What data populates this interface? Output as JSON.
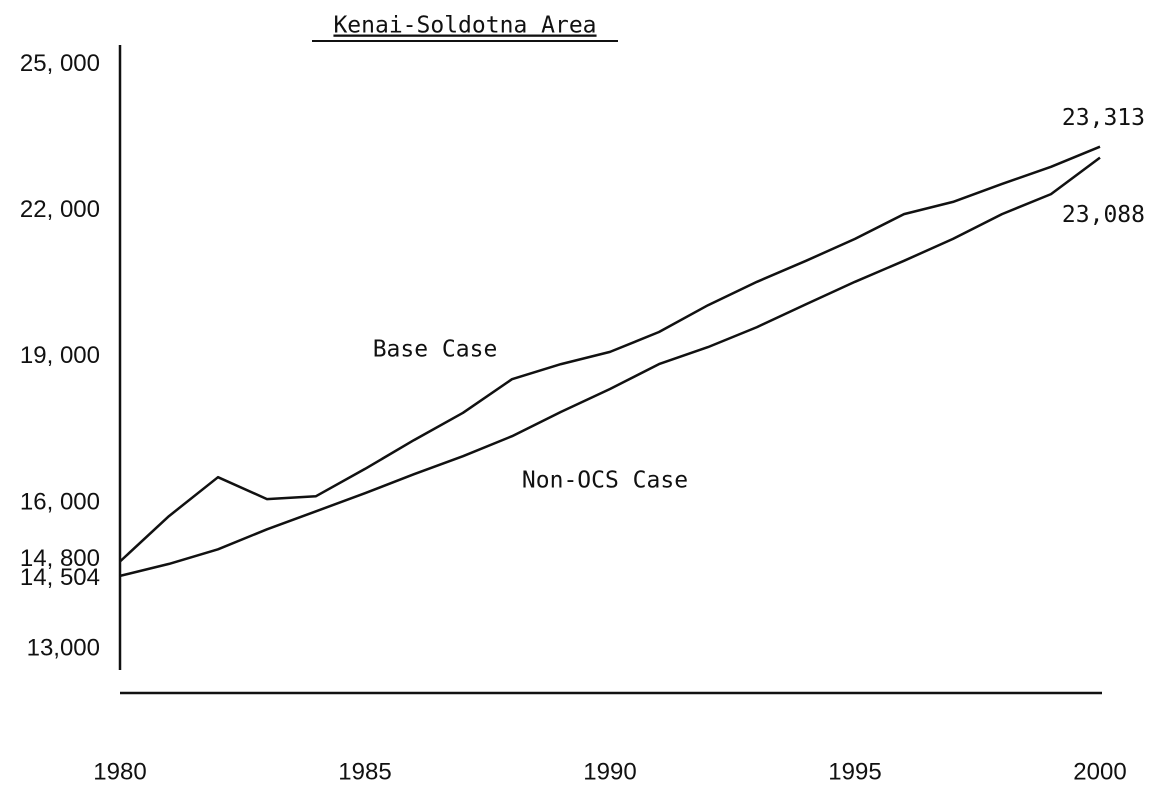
{
  "chart_data": {
    "type": "line",
    "title": "Kenai-Soldotna Area",
    "x": [
      1980,
      1981,
      1982,
      1983,
      1984,
      1985,
      1986,
      1987,
      1988,
      1989,
      1990,
      1991,
      1992,
      1993,
      1994,
      1995,
      1996,
      1997,
      1998,
      1999,
      2000
    ],
    "series": [
      {
        "name": "Base Case",
        "color": "#111111",
        "values": [
          14800,
          15730,
          16530,
          16080,
          16140,
          16700,
          17290,
          17850,
          18540,
          18850,
          19100,
          19510,
          20060,
          20540,
          20970,
          21420,
          21930,
          22180,
          22550,
          22900,
          23313
        ],
        "value_labels": [
          null,
          null,
          null,
          null,
          null,
          null,
          null,
          null,
          null,
          null,
          null,
          null,
          null,
          null,
          null,
          null,
          null,
          null,
          null,
          null,
          "23,313"
        ]
      },
      {
        "name": "Non-OCS Case",
        "color": "#111111",
        "values": [
          14504,
          14750,
          15050,
          15460,
          15830,
          16200,
          16590,
          16960,
          17370,
          17870,
          18340,
          18850,
          19200,
          19610,
          20080,
          20540,
          20970,
          21420,
          21930,
          22340,
          23088
        ],
        "value_labels": [
          null,
          null,
          null,
          null,
          null,
          null,
          null,
          null,
          null,
          null,
          null,
          null,
          null,
          null,
          null,
          null,
          null,
          null,
          null,
          null,
          "23,088"
        ]
      }
    ],
    "xlim": [
      1980,
      2000
    ],
    "xticks": [
      1980,
      1985,
      1990,
      1995,
      2000
    ],
    "ylim": [
      12100,
      25400
    ],
    "yticks": [
      {
        "value": 25000,
        "label": "25, 000"
      },
      {
        "value": 22000,
        "label": "22, 000"
      },
      {
        "value": 19000,
        "label": "19, 000"
      },
      {
        "value": 16000,
        "label": "16, 000"
      },
      {
        "value": 14800,
        "label": "14, 800"
      },
      {
        "value": 14504,
        "label": "14, 504"
      },
      {
        "value": 13000,
        "label": "13,000"
      }
    ],
    "grid": false
  }
}
